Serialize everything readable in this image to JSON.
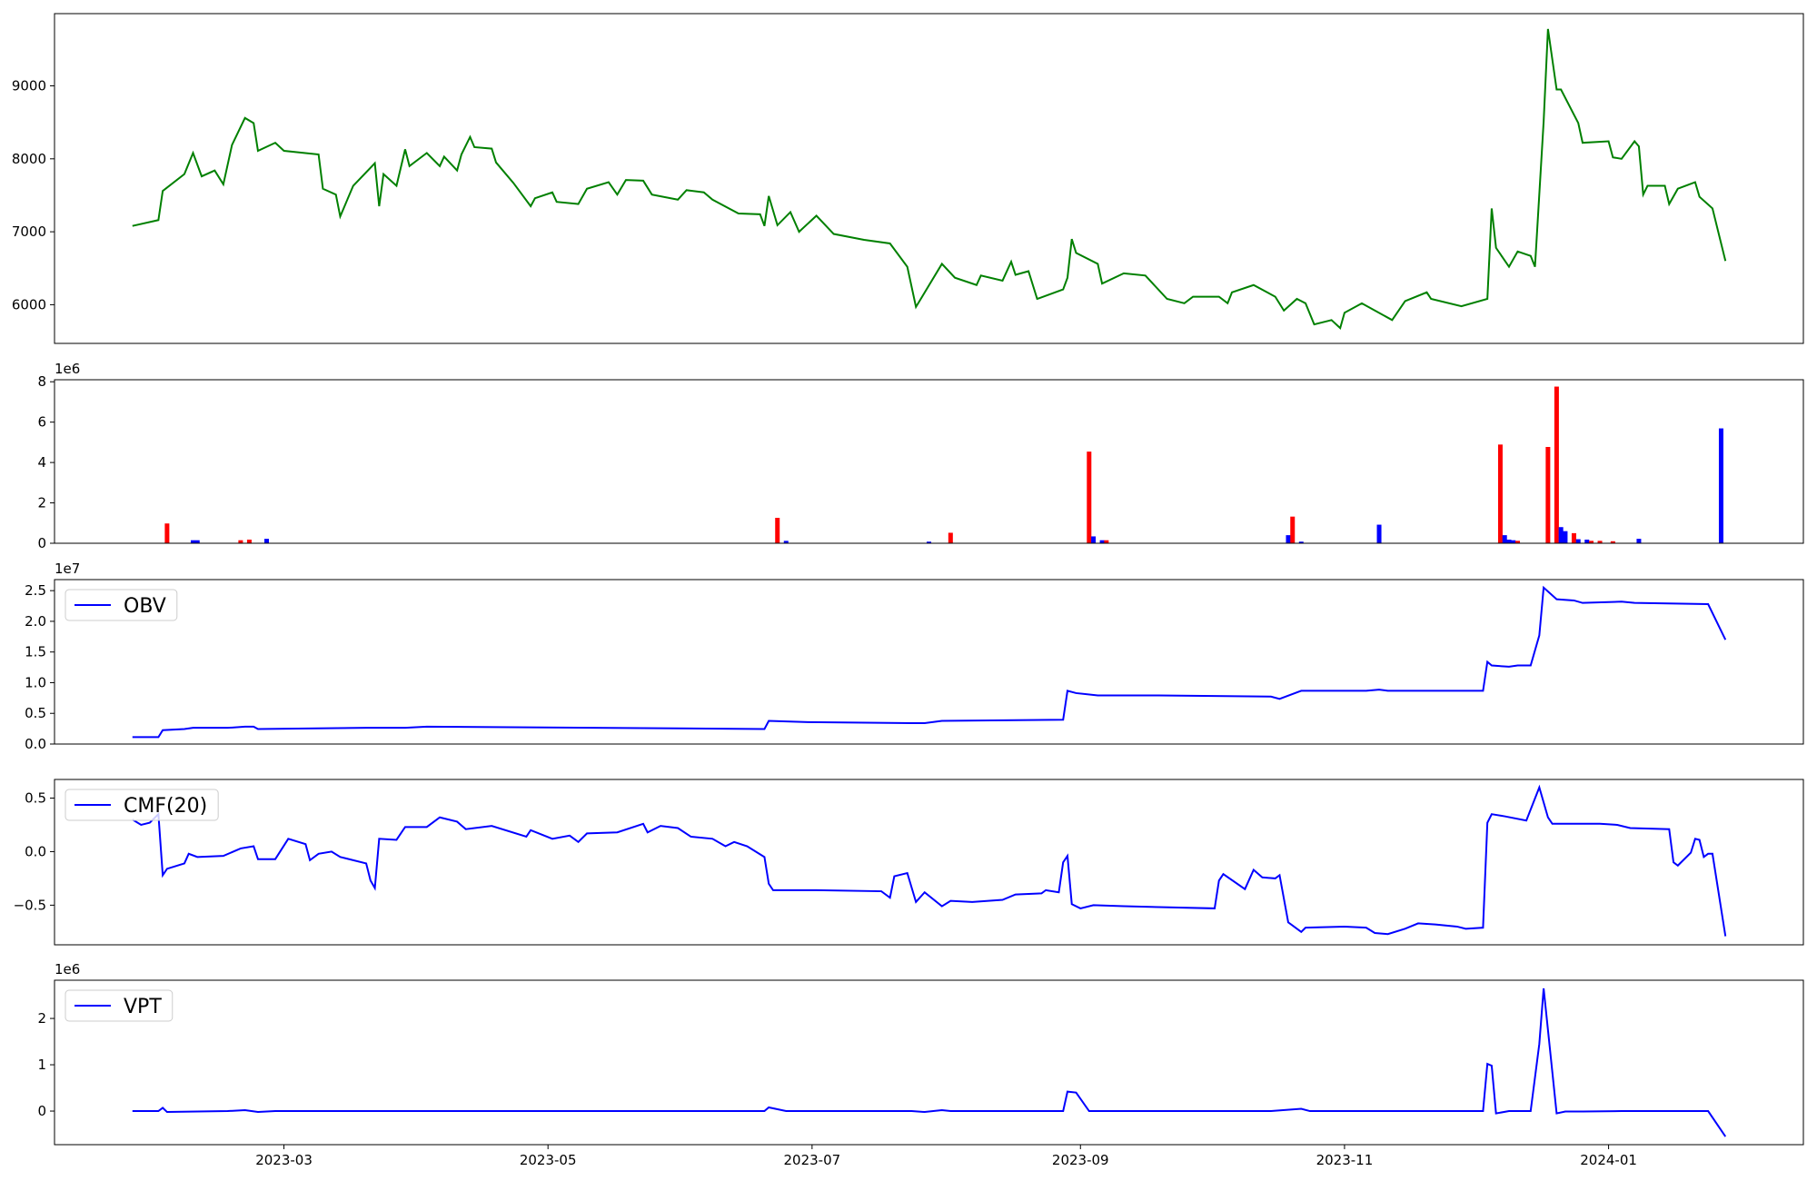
{
  "chart_data": [
    {
      "type": "line",
      "color": "#008000",
      "x": [
        "2023-01-25",
        "2023-01-31",
        "2023-02-01",
        "2023-02-06",
        "2023-02-08",
        "2023-02-10",
        "2023-02-13",
        "2023-02-15",
        "2023-02-17",
        "2023-02-20",
        "2023-02-22",
        "2023-02-23",
        "2023-02-27",
        "2023-03-01",
        "2023-03-09",
        "2023-03-10",
        "2023-03-13",
        "2023-03-14",
        "2023-03-17",
        "2023-03-22",
        "2023-03-23",
        "2023-03-24",
        "2023-03-27",
        "2023-03-29",
        "2023-03-30",
        "2023-04-03",
        "2023-04-06",
        "2023-04-07",
        "2023-04-10",
        "2023-04-11",
        "2023-04-13",
        "2023-04-14",
        "2023-04-18",
        "2023-04-19",
        "2023-04-23",
        "2023-04-27",
        "2023-04-28",
        "2023-05-02",
        "2023-05-03",
        "2023-05-08",
        "2023-05-10",
        "2023-05-15",
        "2023-05-17",
        "2023-05-19",
        "2023-05-23",
        "2023-05-25",
        "2023-05-31",
        "2023-06-02",
        "2023-06-06",
        "2023-06-08",
        "2023-06-14",
        "2023-06-19",
        "2023-06-20",
        "2023-06-21",
        "2023-06-23",
        "2023-06-26",
        "2023-06-28",
        "2023-07-02",
        "2023-07-06",
        "2023-07-13",
        "2023-07-19",
        "2023-07-23",
        "2023-07-25",
        "2023-07-31",
        "2023-08-03",
        "2023-08-08",
        "2023-08-09",
        "2023-08-14",
        "2023-08-16",
        "2023-08-17",
        "2023-08-20",
        "2023-08-22",
        "2023-08-28",
        "2023-08-29",
        "2023-08-30",
        "2023-08-31",
        "2023-09-05",
        "2023-09-06",
        "2023-09-11",
        "2023-09-16",
        "2023-09-21",
        "2023-09-25",
        "2023-09-27",
        "2023-10-03",
        "2023-10-05",
        "2023-10-06",
        "2023-10-11",
        "2023-10-16",
        "2023-10-18",
        "2023-10-21",
        "2023-10-23",
        "2023-10-25",
        "2023-10-29",
        "2023-10-31",
        "2023-11-01",
        "2023-11-05",
        "2023-11-12",
        "2023-11-15",
        "2023-11-20",
        "2023-11-21",
        "2023-11-28",
        "2023-12-04",
        "2023-12-05",
        "2023-12-06",
        "2023-12-09",
        "2023-12-11",
        "2023-12-14",
        "2023-12-15",
        "2023-12-17",
        "2023-12-18",
        "2023-12-20",
        "2023-12-21",
        "2023-12-25",
        "2023-12-26",
        "2024-01-01",
        "2024-01-02",
        "2024-01-04",
        "2024-01-07",
        "2024-01-08",
        "2024-01-09",
        "2024-01-10",
        "2024-01-14",
        "2024-01-15",
        "2024-01-17",
        "2024-01-21",
        "2024-01-22",
        "2024-01-25",
        "2024-01-28"
      ],
      "values": [
        7080,
        7160,
        7560,
        7790,
        8080,
        7760,
        7840,
        7650,
        8190,
        8560,
        8490,
        8110,
        8220,
        8110,
        8060,
        7590,
        7510,
        7210,
        7630,
        7940,
        7350,
        7790,
        7630,
        8130,
        7900,
        8080,
        7900,
        8030,
        7840,
        8060,
        8300,
        8160,
        8140,
        7950,
        7670,
        7350,
        7460,
        7540,
        7410,
        7380,
        7590,
        7680,
        7510,
        7710,
        7700,
        7510,
        7440,
        7570,
        7540,
        7440,
        7250,
        7240,
        7080,
        7490,
        7090,
        7270,
        7000,
        7220,
        6970,
        6890,
        6840,
        6520,
        5970,
        6560,
        6370,
        6270,
        6400,
        6330,
        6590,
        6410,
        6460,
        6080,
        6210,
        6370,
        6900,
        6710,
        6560,
        6290,
        6430,
        6400,
        6080,
        6020,
        6110,
        6110,
        6020,
        6170,
        6270,
        6110,
        5920,
        6080,
        6020,
        5730,
        5790,
        5680,
        5890,
        6020,
        5790,
        6050,
        6170,
        6080,
        5980,
        6080,
        7320,
        6780,
        6520,
        6730,
        6670,
        6520,
        8510,
        9780,
        8950,
        8950,
        8490,
        8220,
        8240,
        8020,
        8000,
        8240,
        8170,
        7510,
        7630,
        7630,
        7380,
        7590,
        7680,
        7480,
        7320,
        6600
      ],
      "xlim": [
        "2023-01-07",
        "2024-02-15"
      ],
      "ylim": [
        5470,
        9990
      ],
      "yticks": [
        6000,
        7000,
        8000,
        9000
      ]
    },
    {
      "type": "bar",
      "x": [
        "2023-02-02",
        "2023-02-08",
        "2023-02-09",
        "2023-02-19",
        "2023-02-21",
        "2023-02-25",
        "2023-06-23",
        "2023-06-25",
        "2023-07-28",
        "2023-08-02",
        "2023-09-03",
        "2023-09-04",
        "2023-09-06",
        "2023-09-07",
        "2023-10-19",
        "2023-10-20",
        "2023-10-22",
        "2023-11-09",
        "2023-12-07",
        "2023-12-08",
        "2023-12-09",
        "2023-12-10",
        "2023-12-11",
        "2023-12-18",
        "2023-12-20",
        "2023-12-21",
        "2023-12-22",
        "2023-12-24",
        "2023-12-25",
        "2023-12-27",
        "2023-12-28",
        "2023-12-30",
        "2024-01-02",
        "2024-01-08",
        "2024-01-27"
      ],
      "values": [
        980000,
        150000,
        150000,
        150000,
        180000,
        220000,
        1260000,
        120000,
        80000,
        520000,
        4540000,
        340000,
        150000,
        150000,
        400000,
        1320000,
        80000,
        920000,
        4890000,
        400000,
        180000,
        150000,
        120000,
        4770000,
        7760000,
        800000,
        600000,
        500000,
        200000,
        180000,
        120000,
        120000,
        100000,
        220000,
        5690000
      ],
      "colors": [
        "#ff0000",
        "#0000ff",
        "#0000ff",
        "#ff0000",
        "#ff0000",
        "#0000ff",
        "#ff0000",
        "#0000ff",
        "#0000ff",
        "#ff0000",
        "#ff0000",
        "#0000ff",
        "#0000ff",
        "#ff0000",
        "#0000ff",
        "#ff0000",
        "#0000ff",
        "#0000ff",
        "#ff0000",
        "#0000ff",
        "#0000ff",
        "#0000ff",
        "#ff0000",
        "#ff0000",
        "#ff0000",
        "#0000ff",
        "#0000ff",
        "#ff0000",
        "#0000ff",
        "#0000ff",
        "#ff0000",
        "#ff0000",
        "#ff0000",
        "#0000ff",
        "#0000ff"
      ],
      "xlim": [
        "2023-01-07",
        "2024-02-15"
      ],
      "ylim": [
        0,
        8100000
      ],
      "offset_text": "1e6",
      "yticks": [
        0,
        {
          "value": 2000000,
          "label": "2"
        },
        {
          "value": 4000000,
          "label": "4"
        },
        {
          "value": 6000000,
          "label": "6"
        },
        {
          "value": 8000000,
          "label": "8"
        }
      ]
    },
    {
      "type": "line",
      "legend": "upper left",
      "x": [
        "2023-01-25",
        "2023-01-31",
        "2023-02-01",
        "2023-02-06",
        "2023-02-08",
        "2023-02-16",
        "2023-02-20",
        "2023-02-22",
        "2023-02-23",
        "2023-03-20",
        "2023-03-29",
        "2023-04-03",
        "2023-06-20",
        "2023-06-21",
        "2023-06-30",
        "2023-07-24",
        "2023-07-27",
        "2023-07-31",
        "2023-08-28",
        "2023-08-29",
        "2023-08-31",
        "2023-09-05",
        "2023-09-11",
        "2023-09-19",
        "2023-10-15",
        "2023-10-17",
        "2023-10-22",
        "2023-11-06",
        "2023-11-09",
        "2023-11-11",
        "2023-12-03",
        "2023-12-04",
        "2023-12-05",
        "2023-12-09",
        "2023-12-11",
        "2023-12-14",
        "2023-12-16",
        "2023-12-17",
        "2023-12-20",
        "2023-12-24",
        "2023-12-26",
        "2024-01-04",
        "2024-01-07",
        "2024-01-24",
        "2024-01-28"
      ],
      "series": [
        {
          "name": "OBV",
          "color": "#0000ff",
          "values": [
            1130000,
            1130000,
            2260000,
            2450000,
            2640000,
            2640000,
            2830000,
            2830000,
            2450000,
            2640000,
            2640000,
            2830000,
            2450000,
            3770000,
            3580000,
            3400000,
            3400000,
            3770000,
            3960000,
            8680000,
            8300000,
            7920000,
            7920000,
            7920000,
            7740000,
            7360000,
            8680000,
            8680000,
            8870000,
            8680000,
            8680000,
            13400000,
            12800000,
            12600000,
            12800000,
            12800000,
            17700000,
            25500000,
            23600000,
            23400000,
            23000000,
            23200000,
            23000000,
            22800000,
            17000000
          ]
        }
      ],
      "xlim": [
        "2023-01-07",
        "2024-02-15"
      ],
      "ylim": [
        0,
        26800000
      ],
      "offset_text": "1e7",
      "yticks": [
        {
          "value": 0,
          "label": "0.0"
        },
        {
          "value": 5000000,
          "label": "0.5"
        },
        {
          "value": 10000000,
          "label": "1.0"
        },
        {
          "value": 15000000,
          "label": "1.5"
        },
        {
          "value": 20000000,
          "label": "2.0"
        },
        {
          "value": 25000000,
          "label": "2.5"
        }
      ]
    },
    {
      "type": "line",
      "legend": "upper left",
      "x": [
        "2023-01-25",
        "2023-01-27",
        "2023-01-29",
        "2023-01-31",
        "2023-02-01",
        "2023-02-02",
        "2023-02-06",
        "2023-02-07",
        "2023-02-09",
        "2023-02-15",
        "2023-02-19",
        "2023-02-22",
        "2023-02-23",
        "2023-02-27",
        "2023-03-02",
        "2023-03-06",
        "2023-03-07",
        "2023-03-09",
        "2023-03-12",
        "2023-03-14",
        "2023-03-20",
        "2023-03-21",
        "2023-03-22",
        "2023-03-23",
        "2023-03-27",
        "2023-03-29",
        "2023-04-03",
        "2023-04-06",
        "2023-04-10",
        "2023-04-12",
        "2023-04-18",
        "2023-04-26",
        "2023-04-27",
        "2023-05-02",
        "2023-05-06",
        "2023-05-08",
        "2023-05-10",
        "2023-05-17",
        "2023-05-23",
        "2023-05-24",
        "2023-05-27",
        "2023-05-31",
        "2023-06-03",
        "2023-06-08",
        "2023-06-11",
        "2023-06-13",
        "2023-06-16",
        "2023-06-20",
        "2023-06-21",
        "2023-06-22",
        "2023-07-02",
        "2023-07-17",
        "2023-07-19",
        "2023-07-20",
        "2023-07-23",
        "2023-07-25",
        "2023-07-27",
        "2023-07-31",
        "2023-08-02",
        "2023-08-07",
        "2023-08-14",
        "2023-08-17",
        "2023-08-23",
        "2023-08-24",
        "2023-08-27",
        "2023-08-28",
        "2023-08-29",
        "2023-08-30",
        "2023-09-01",
        "2023-09-04",
        "2023-09-11",
        "2023-10-02",
        "2023-10-03",
        "2023-10-04",
        "2023-10-09",
        "2023-10-11",
        "2023-10-13",
        "2023-10-16",
        "2023-10-17",
        "2023-10-19",
        "2023-10-22",
        "2023-10-23",
        "2023-11-01",
        "2023-11-06",
        "2023-11-08",
        "2023-11-11",
        "2023-11-15",
        "2023-11-18",
        "2023-11-22",
        "2023-11-27",
        "2023-11-29",
        "2023-12-03",
        "2023-12-04",
        "2023-12-05",
        "2023-12-08",
        "2023-12-13",
        "2023-12-16",
        "2023-12-18",
        "2023-12-19",
        "2023-12-30",
        "2024-01-03",
        "2024-01-06",
        "2024-01-15",
        "2024-01-16",
        "2024-01-17",
        "2024-01-20",
        "2024-01-21",
        "2024-01-22",
        "2024-01-23",
        "2024-01-24",
        "2024-01-25",
        "2024-01-28"
      ],
      "series": [
        {
          "name": "CMF(20)",
          "color": "#0000ff",
          "values": [
            0.3,
            0.25,
            0.27,
            0.35,
            -0.22,
            -0.16,
            -0.11,
            -0.02,
            -0.05,
            -0.04,
            0.03,
            0.05,
            -0.07,
            -0.07,
            0.12,
            0.07,
            -0.08,
            -0.02,
            0.0,
            -0.05,
            -0.11,
            -0.27,
            -0.34,
            0.12,
            0.11,
            0.23,
            0.23,
            0.32,
            0.28,
            0.21,
            0.24,
            0.14,
            0.2,
            0.12,
            0.15,
            0.09,
            0.17,
            0.18,
            0.26,
            0.18,
            0.24,
            0.22,
            0.14,
            0.12,
            0.05,
            0.09,
            0.05,
            -0.05,
            -0.3,
            -0.36,
            -0.36,
            -0.37,
            -0.43,
            -0.23,
            -0.2,
            -0.47,
            -0.38,
            -0.51,
            -0.46,
            -0.47,
            -0.45,
            -0.4,
            -0.39,
            -0.36,
            -0.38,
            -0.1,
            -0.04,
            -0.49,
            -0.53,
            -0.5,
            -0.51,
            -0.53,
            -0.27,
            -0.21,
            -0.35,
            -0.17,
            -0.24,
            -0.25,
            -0.22,
            -0.66,
            -0.75,
            -0.71,
            -0.7,
            -0.71,
            -0.76,
            -0.77,
            -0.72,
            -0.67,
            -0.68,
            -0.7,
            -0.72,
            -0.71,
            0.27,
            0.35,
            0.33,
            0.29,
            0.6,
            0.32,
            0.26,
            0.26,
            0.25,
            0.22,
            0.21,
            -0.1,
            -0.13,
            -0.01,
            0.12,
            0.11,
            -0.05,
            -0.02,
            -0.02,
            -0.79
          ]
        }
      ],
      "xlim": [
        "2023-01-07",
        "2024-02-15"
      ],
      "ylim": [
        -0.87,
        0.674
      ],
      "yticks": [
        {
          "value": -0.5,
          "label": "−0.5"
        },
        {
          "value": 0,
          "label": "0.0"
        },
        {
          "value": 0.5,
          "label": "0.5"
        }
      ]
    },
    {
      "type": "line",
      "legend": "upper left",
      "x": [
        "2023-01-25",
        "2023-01-31",
        "2023-02-01",
        "2023-02-02",
        "2023-02-16",
        "2023-02-20",
        "2023-02-23",
        "2023-02-27",
        "2023-06-20",
        "2023-06-21",
        "2023-06-25",
        "2023-07-24",
        "2023-07-27",
        "2023-07-31",
        "2023-08-02",
        "2023-08-28",
        "2023-08-29",
        "2023-08-31",
        "2023-09-03",
        "2023-10-15",
        "2023-10-22",
        "2023-10-24",
        "2023-12-03",
        "2023-12-04",
        "2023-12-05",
        "2023-12-06",
        "2023-12-09",
        "2023-12-14",
        "2023-12-16",
        "2023-12-17",
        "2023-12-20",
        "2023-12-22",
        "2023-12-26",
        "2024-01-04",
        "2024-01-24",
        "2024-01-28"
      ],
      "series": [
        {
          "name": "VPT",
          "color": "#0000ff",
          "values": [
            0,
            0,
            70000,
            -20000,
            0,
            20000,
            -20000,
            0,
            0,
            80000,
            0,
            0,
            -20000,
            20000,
            0,
            0,
            420000,
            400000,
            0,
            0,
            50000,
            0,
            0,
            1020000,
            980000,
            -50000,
            0,
            0,
            1450000,
            2650000,
            -50000,
            -10000,
            -10000,
            0,
            0,
            -550000
          ]
        }
      ],
      "xlim": [
        "2023-01-07",
        "2024-02-15"
      ],
      "ylim": [
        -725000,
        2825000
      ],
      "offset_text": "1e6",
      "yticks": [
        0,
        {
          "value": 1000000,
          "label": "1"
        },
        {
          "value": 2000000,
          "label": "2"
        }
      ],
      "xticks": [
        {
          "value": "2023-03-01",
          "label": "2023-03"
        },
        {
          "value": "2023-05-01",
          "label": "2023-05"
        },
        {
          "value": "2023-07-01",
          "label": "2023-07"
        },
        {
          "value": "2023-09-01",
          "label": "2023-09"
        },
        {
          "value": "2023-11-01",
          "label": "2023-11"
        },
        {
          "value": "2024-01-01",
          "label": "2024-01"
        }
      ]
    }
  ]
}
